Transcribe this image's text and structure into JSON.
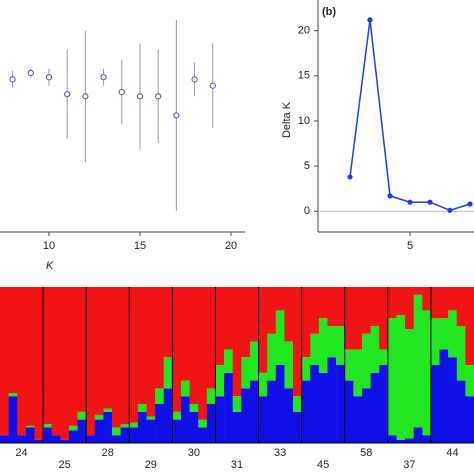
{
  "chart_data": [
    {
      "type": "errorbar",
      "x": [
        8,
        9,
        10,
        11,
        12,
        13,
        14,
        15,
        16,
        17,
        18,
        19
      ],
      "values": [
        72,
        75,
        73,
        65,
        64,
        73,
        66,
        64,
        64,
        55,
        72,
        69
      ],
      "errors": [
        4,
        2,
        4,
        21,
        31,
        4,
        15,
        25,
        22,
        45,
        8,
        20
      ],
      "color": "#4a4ae0",
      "xlabel": "K",
      "xlim": [
        7.31,
        20.77
      ],
      "ylim": [
        0,
        100
      ],
      "xticks": [
        10,
        15,
        20
      ]
    },
    {
      "type": "line",
      "title": "(b)",
      "ylabel": "Delta K",
      "x": [
        2,
        3,
        4,
        5,
        6,
        7,
        8
      ],
      "values": [
        3.8,
        21.2,
        1.7,
        1.0,
        1.0,
        0.1,
        0.8
      ],
      "color": "#1f3fe0",
      "xlim": [
        0.4,
        8.2
      ],
      "ylim": [
        -2.3,
        23.4
      ],
      "xticks": [
        5
      ],
      "yticks": [
        0,
        5,
        10,
        15,
        20
      ]
    },
    {
      "type": "structure",
      "colors": [
        "#1010e6",
        "#22e622",
        "#f01414"
      ],
      "populations": [
        {
          "label": "24",
          "values": [
            [
              0.05,
              0.3,
              0.05,
              0.1,
              0.02
            ],
            [
              0,
              0.02,
              0,
              0.01,
              0
            ],
            [
              0.95,
              0.68,
              0.95,
              0.89,
              0.98
            ]
          ]
        },
        {
          "label": "25",
          "values": [
            [
              0.1,
              0.05,
              0.02,
              0.08,
              0.15
            ],
            [
              0.02,
              0,
              0,
              0.03,
              0.05
            ],
            [
              0.88,
              0.95,
              0.98,
              0.89,
              0.8
            ]
          ]
        },
        {
          "label": "28",
          "values": [
            [
              0.05,
              0.15,
              0.2,
              0.05,
              0.1
            ],
            [
              0,
              0.03,
              0.02,
              0.05,
              0.02
            ],
            [
              0.95,
              0.82,
              0.78,
              0.9,
              0.88
            ]
          ]
        },
        {
          "label": "29",
          "values": [
            [
              0.1,
              0.2,
              0.15,
              0.25,
              0.35
            ],
            [
              0.03,
              0.05,
              0.02,
              0.1,
              0.2
            ],
            [
              0.87,
              0.75,
              0.83,
              0.65,
              0.45
            ]
          ]
        },
        {
          "label": "30",
          "values": [
            [
              0.15,
              0.3,
              0.2,
              0.1,
              0.25
            ],
            [
              0.05,
              0.1,
              0.05,
              0.05,
              0.1
            ],
            [
              0.8,
              0.6,
              0.75,
              0.85,
              0.65
            ]
          ]
        },
        {
          "label": "31",
          "values": [
            [
              0.3,
              0.45,
              0.2,
              0.35,
              0.4
            ],
            [
              0.2,
              0.15,
              0.1,
              0.2,
              0.25
            ],
            [
              0.5,
              0.4,
              0.7,
              0.45,
              0.35
            ]
          ]
        },
        {
          "label": "33",
          "values": [
            [
              0.3,
              0.4,
              0.5,
              0.35,
              0.2
            ],
            [
              0.15,
              0.3,
              0.35,
              0.3,
              0.1
            ],
            [
              0.55,
              0.3,
              0.15,
              0.35,
              0.7
            ]
          ]
        },
        {
          "label": "45",
          "values": [
            [
              0.4,
              0.5,
              0.45,
              0.55,
              0.5
            ],
            [
              0.15,
              0.2,
              0.35,
              0.2,
              0.25
            ],
            [
              0.45,
              0.3,
              0.2,
              0.25,
              0.25
            ]
          ]
        },
        {
          "label": "58",
          "values": [
            [
              0.4,
              0.3,
              0.35,
              0.45,
              0.5
            ],
            [
              0.2,
              0.3,
              0.35,
              0.3,
              0.1
            ],
            [
              0.4,
              0.4,
              0.3,
              0.25,
              0.4
            ]
          ]
        },
        {
          "label": "37",
          "values": [
            [
              0.05,
              0.02,
              0.03,
              0.1,
              0.05
            ],
            [
              0.75,
              0.8,
              0.7,
              0.85,
              0.8
            ],
            [
              0.2,
              0.18,
              0.27,
              0.05,
              0.15
            ]
          ]
        },
        {
          "label": "44",
          "values": [
            [
              0.5,
              0.6,
              0.55,
              0.4,
              0.3
            ],
            [
              0.3,
              0.2,
              0.3,
              0.35,
              0.2
            ],
            [
              0.2,
              0.2,
              0.15,
              0.25,
              0.5
            ]
          ]
        }
      ]
    }
  ]
}
